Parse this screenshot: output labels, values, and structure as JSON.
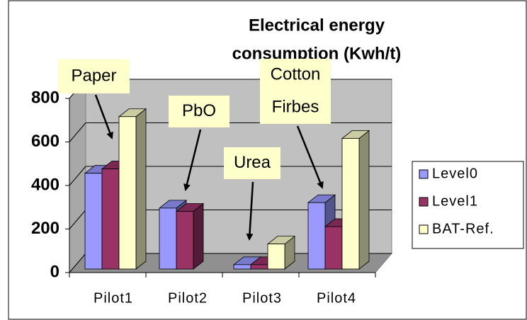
{
  "chart_data": {
    "type": "bar3d",
    "title_lines": [
      "Electrical energy",
      "consumption (Kwh/t)"
    ],
    "categories": [
      "Pilot1",
      "Pilot2",
      "Pilot3",
      "Pilot4"
    ],
    "series": [
      {
        "name": "Level0",
        "color": "#9999ff",
        "values": [
          440,
          280,
          20,
          305
        ]
      },
      {
        "name": "Level1",
        "color": "#993366",
        "values": [
          460,
          265,
          20,
          195
        ]
      },
      {
        "name": "BAT-Ref.",
        "color": "#ffffcc",
        "values": [
          700,
          null,
          115,
          600
        ]
      }
    ],
    "ylim": [
      0,
      800
    ],
    "yticks": [
      0,
      200,
      400,
      600,
      800
    ],
    "grid": true,
    "legend": "right",
    "annotations": [
      {
        "lines": [
          "Paper"
        ]
      },
      {
        "lines": [
          "PbO"
        ]
      },
      {
        "lines": [
          "Urea"
        ]
      },
      {
        "lines": [
          "Cotton",
          "Firbes"
        ]
      }
    ]
  }
}
